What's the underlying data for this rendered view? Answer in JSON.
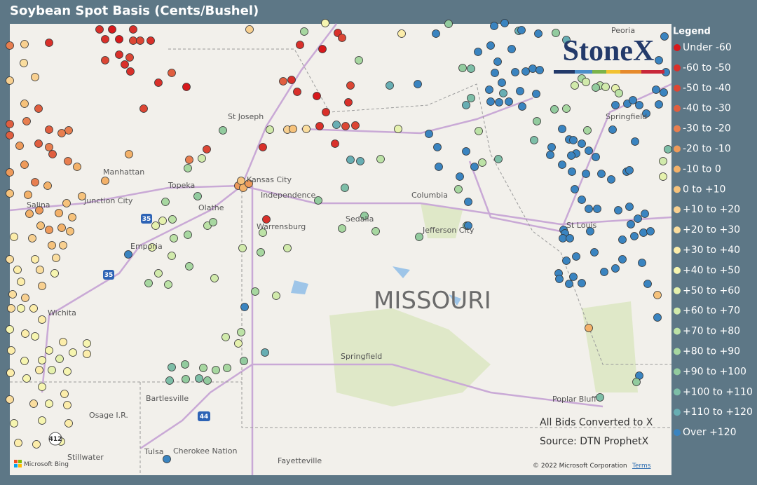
{
  "header": {
    "title": "Soybean Spot Basis (Cents/Bushel)"
  },
  "map": {
    "places": [
      "St Joseph",
      "Manhattan",
      "Topeka",
      "Kansas City",
      "Junction City",
      "Salina",
      "Independence",
      "Olathe",
      "Columbia",
      "Warrensburg",
      "Sedalia",
      "Jefferson City",
      "Emporia",
      "St Louis",
      "Peoria",
      "Springfield",
      "Wichita",
      "Springfield",
      "Bartlesville",
      "Osage I.R.",
      "Tulsa",
      "Cherokee Nation",
      "Stillwater",
      "Fayetteville",
      "Poplar Bluff"
    ],
    "region_label": "MISSOURI",
    "shields": [
      "35",
      "35",
      "44",
      "412"
    ],
    "logo": "StoneX",
    "notes": [
      "All Bids Converted to X",
      "Source: DTN ProphetX"
    ],
    "attribution": {
      "bing": "Microsoft Bing",
      "copyright": "© 2022 Microsoft Corporation",
      "terms": "Terms"
    }
  },
  "legend": {
    "title": "Legend",
    "items": [
      {
        "label": "Under -60",
        "color": "#d7191c"
      },
      {
        "label": "-60 to -50",
        "color": "#d9302a"
      },
      {
        "label": "-50 to -40",
        "color": "#dc4634"
      },
      {
        "label": "-40 to -30",
        "color": "#e05e3f"
      },
      {
        "label": "-30 to -20",
        "color": "#e87e4f"
      },
      {
        "label": "-20 to -10",
        "color": "#ee9a5a"
      },
      {
        "label": "-10 to 0",
        "color": "#f3b169"
      },
      {
        "label": "0 to +10",
        "color": "#f6c27b"
      },
      {
        "label": "+10 to +20",
        "color": "#f8d090"
      },
      {
        "label": "+20 to +30",
        "color": "#fadd9e"
      },
      {
        "label": "+30 to +40",
        "color": "#fcedaa"
      },
      {
        "label": "+40 to +50",
        "color": "#f6f5b0"
      },
      {
        "label": "+50 to +60",
        "color": "#e5f1ad"
      },
      {
        "label": "+60 to +70",
        "color": "#d1eaab"
      },
      {
        "label": "+70 to +80",
        "color": "#bce2a6"
      },
      {
        "label": "+80 to +90",
        "color": "#a7d7a0"
      },
      {
        "label": "+90 to +100",
        "color": "#92cb9e"
      },
      {
        "label": "+100 to +110",
        "color": "#7dbea7"
      },
      {
        "label": "+110 to +120",
        "color": "#68aeb3"
      },
      {
        "label": "Over +120",
        "color": "#3a84c0"
      }
    ]
  }
}
